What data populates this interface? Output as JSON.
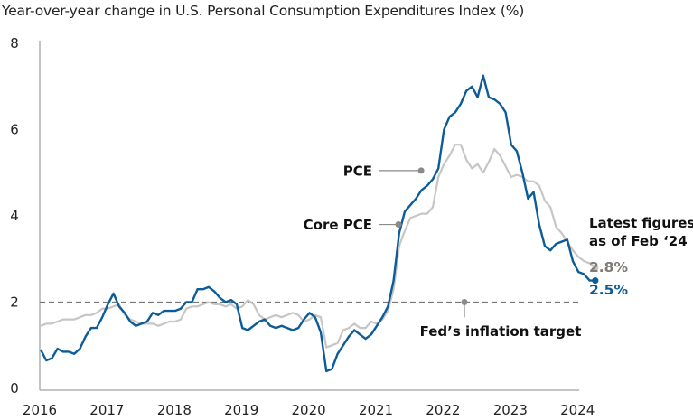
{
  "chart_data": {
    "type": "line",
    "title": "Year-over-year change in U.S. Personal Consumption Expenditures Index (%)",
    "xlabel": "",
    "ylabel": "",
    "xlim": [
      2016,
      2024.17
    ],
    "ylim": [
      0,
      8
    ],
    "yticks": [
      "0",
      "2",
      "4",
      "6",
      "8"
    ],
    "xticks": [
      "2016",
      "2017",
      "2018",
      "2019",
      "2020",
      "2021",
      "2022",
      "2023",
      "2024"
    ],
    "grid": false,
    "x_start": "Jan 2016",
    "x_step": "monthly",
    "series": [
      {
        "name": "PCE",
        "color": "#0b5c99",
        "values": [
          0.9,
          0.65,
          0.7,
          0.92,
          0.85,
          0.85,
          0.8,
          0.92,
          1.2,
          1.4,
          1.4,
          1.65,
          1.95,
          2.2,
          1.9,
          1.75,
          1.55,
          1.45,
          1.5,
          1.55,
          1.75,
          1.7,
          1.8,
          1.8,
          1.8,
          1.85,
          2.0,
          2.0,
          2.3,
          2.3,
          2.35,
          2.25,
          2.1,
          2.0,
          2.05,
          1.95,
          1.4,
          1.35,
          1.45,
          1.55,
          1.6,
          1.45,
          1.4,
          1.45,
          1.4,
          1.35,
          1.4,
          1.6,
          1.75,
          1.65,
          1.3,
          0.4,
          0.45,
          0.8,
          1.0,
          1.2,
          1.35,
          1.25,
          1.15,
          1.25,
          1.45,
          1.65,
          1.9,
          2.5,
          3.6,
          4.1,
          4.25,
          4.4,
          4.6,
          4.7,
          4.85,
          5.1,
          6.0,
          6.3,
          6.4,
          6.6,
          6.9,
          7.0,
          6.75,
          7.25,
          6.75,
          6.7,
          6.6,
          6.4,
          5.65,
          5.5,
          5.0,
          4.4,
          4.55,
          3.8,
          3.3,
          3.2,
          3.35,
          3.4,
          3.45,
          2.95,
          2.7,
          2.65,
          2.5,
          2.5
        ],
        "latest_label": "2.5%"
      },
      {
        "name": "Core PCE",
        "color": "#c8c6c4",
        "values": [
          1.45,
          1.5,
          1.5,
          1.55,
          1.6,
          1.6,
          1.6,
          1.65,
          1.7,
          1.7,
          1.75,
          1.85,
          1.85,
          1.9,
          1.95,
          1.7,
          1.6,
          1.55,
          1.5,
          1.5,
          1.5,
          1.45,
          1.5,
          1.55,
          1.55,
          1.6,
          1.85,
          1.9,
          1.9,
          1.95,
          2.0,
          1.95,
          1.95,
          1.9,
          1.95,
          1.85,
          1.9,
          2.05,
          1.95,
          1.7,
          1.6,
          1.65,
          1.7,
          1.65,
          1.7,
          1.75,
          1.7,
          1.55,
          1.6,
          1.7,
          1.65,
          0.95,
          1.0,
          1.05,
          1.35,
          1.4,
          1.5,
          1.4,
          1.4,
          1.55,
          1.5,
          1.6,
          1.8,
          2.3,
          3.3,
          3.65,
          3.95,
          4.0,
          4.05,
          4.05,
          4.2,
          4.9,
          5.2,
          5.4,
          5.65,
          5.65,
          5.3,
          5.1,
          5.2,
          5.0,
          5.25,
          5.55,
          5.4,
          5.15,
          4.9,
          4.95,
          4.9,
          4.8,
          4.8,
          4.7,
          4.35,
          4.2,
          3.75,
          3.6,
          3.4,
          3.2,
          3.05,
          2.95,
          2.9,
          2.8
        ],
        "latest_label": "2.8%"
      }
    ],
    "reference_line": {
      "value": 2,
      "label": "Fed’s inflation target",
      "style": "dashed"
    },
    "annotations": [
      {
        "label": "PCE",
        "series": "PCE",
        "at": "Sep 2021"
      },
      {
        "label": "Core PCE",
        "series": "Core PCE",
        "at": "May 2021"
      },
      {
        "label": "Fed’s inflation target",
        "target": "reference_line",
        "at": "Mid 2022"
      }
    ],
    "latest": {
      "heading_line1": "Latest figures",
      "heading_line2": "as of Feb ‘24",
      "core_value": "2.8%",
      "core_color": "#7f7b77",
      "pce_value": "2.5%",
      "pce_color": "#0b5c99"
    }
  }
}
